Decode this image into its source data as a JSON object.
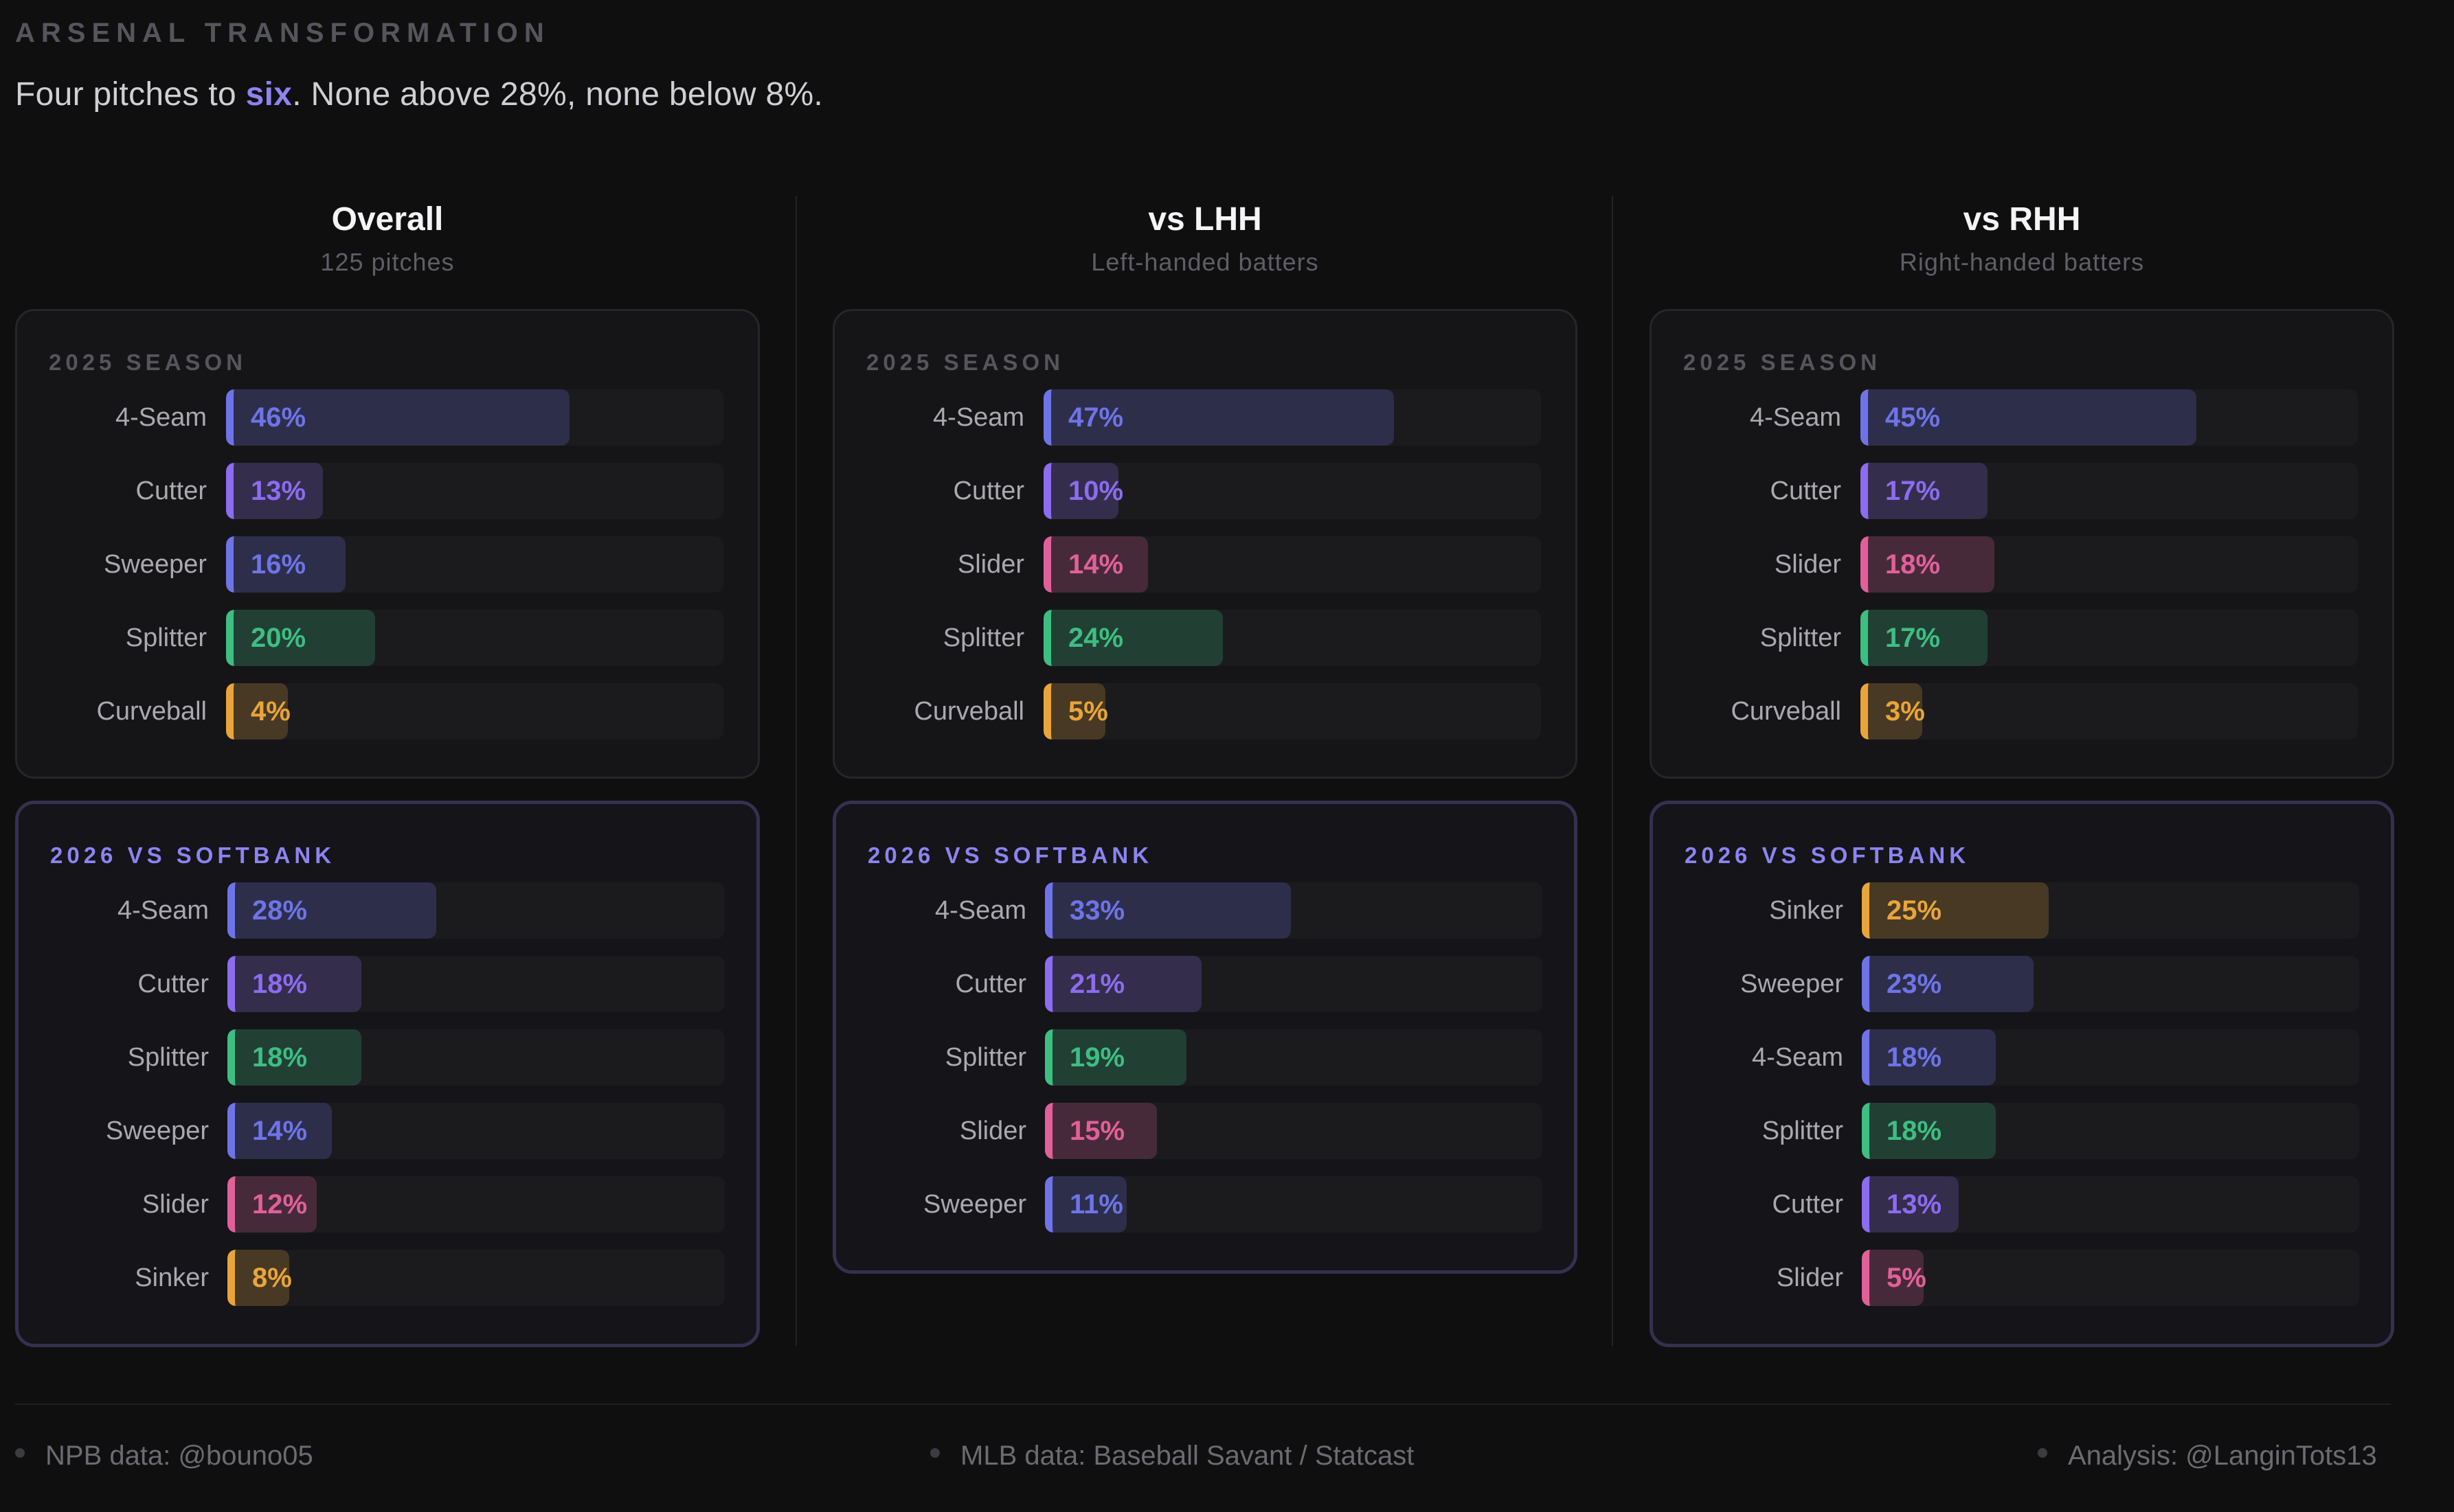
{
  "eyebrow": "ARSENAL TRANSFORMATION",
  "headline": {
    "before": "Four pitches to ",
    "accent": "six",
    "after": ". None above 28%, none below 8%."
  },
  "colors": {
    "fourseam": "#6e74e8",
    "cutter": "#8c6cf0",
    "sweeper": "#6e74e8",
    "splitter": "#3dbf82",
    "curveball": "#e9a53a",
    "slider": "#e2609a",
    "sinker": "#e9a53a",
    "accent": "#8c84f0"
  },
  "chart_data": {
    "type": "bar",
    "orientation": "horizontal",
    "xlim": [
      0,
      100
    ],
    "columns": [
      {
        "title": "Overall",
        "subtitle": "125 pitches",
        "season": {
          "label": "2025 SEASON",
          "rows": [
            {
              "pitch": "4-Seam",
              "value": 46,
              "text": "46%",
              "color": "#6e74e8"
            },
            {
              "pitch": "Cutter",
              "value": 13,
              "text": "13%",
              "color": "#8c6cf0"
            },
            {
              "pitch": "Sweeper",
              "value": 16,
              "text": "16%",
              "color": "#6e74e8"
            },
            {
              "pitch": "Splitter",
              "value": 20,
              "text": "20%",
              "color": "#3dbf82"
            },
            {
              "pitch": "Curveball",
              "value": 4,
              "text": "4%",
              "color": "#e9a53a"
            }
          ]
        },
        "new": {
          "label": "2026 VS SOFTBANK",
          "rows": [
            {
              "pitch": "4-Seam",
              "value": 28,
              "text": "28%",
              "color": "#6e74e8"
            },
            {
              "pitch": "Cutter",
              "value": 18,
              "text": "18%",
              "color": "#8c6cf0"
            },
            {
              "pitch": "Splitter",
              "value": 18,
              "text": "18%",
              "color": "#3dbf82"
            },
            {
              "pitch": "Sweeper",
              "value": 14,
              "text": "14%",
              "color": "#6e74e8"
            },
            {
              "pitch": "Slider",
              "value": 12,
              "text": "12%",
              "color": "#e2609a"
            },
            {
              "pitch": "Sinker",
              "value": 8,
              "text": "8%",
              "color": "#e9a53a"
            }
          ]
        }
      },
      {
        "title": "vs LHH",
        "subtitle": "Left-handed batters",
        "season": {
          "label": "2025 SEASON",
          "rows": [
            {
              "pitch": "4-Seam",
              "value": 47,
              "text": "47%",
              "color": "#6e74e8"
            },
            {
              "pitch": "Cutter",
              "value": 10,
              "text": "10%",
              "color": "#8c6cf0"
            },
            {
              "pitch": "Slider",
              "value": 14,
              "text": "14%",
              "color": "#e2609a"
            },
            {
              "pitch": "Splitter",
              "value": 24,
              "text": "24%",
              "color": "#3dbf82"
            },
            {
              "pitch": "Curveball",
              "value": 5,
              "text": "5%",
              "color": "#e9a53a"
            }
          ]
        },
        "new": {
          "label": "2026 VS SOFTBANK",
          "rows": [
            {
              "pitch": "4-Seam",
              "value": 33,
              "text": "33%",
              "color": "#6e74e8"
            },
            {
              "pitch": "Cutter",
              "value": 21,
              "text": "21%",
              "color": "#8c6cf0"
            },
            {
              "pitch": "Splitter",
              "value": 19,
              "text": "19%",
              "color": "#3dbf82"
            },
            {
              "pitch": "Slider",
              "value": 15,
              "text": "15%",
              "color": "#e2609a"
            },
            {
              "pitch": "Sweeper",
              "value": 11,
              "text": "11%",
              "color": "#6e74e8"
            }
          ]
        }
      },
      {
        "title": "vs RHH",
        "subtitle": "Right-handed batters",
        "season": {
          "label": "2025 SEASON",
          "rows": [
            {
              "pitch": "4-Seam",
              "value": 45,
              "text": "45%",
              "color": "#6e74e8"
            },
            {
              "pitch": "Cutter",
              "value": 17,
              "text": "17%",
              "color": "#8c6cf0"
            },
            {
              "pitch": "Slider",
              "value": 18,
              "text": "18%",
              "color": "#e2609a"
            },
            {
              "pitch": "Splitter",
              "value": 17,
              "text": "17%",
              "color": "#3dbf82"
            },
            {
              "pitch": "Curveball",
              "value": 3,
              "text": "3%",
              "color": "#e9a53a"
            }
          ]
        },
        "new": {
          "label": "2026 VS SOFTBANK",
          "rows": [
            {
              "pitch": "Sinker",
              "value": 25,
              "text": "25%",
              "color": "#e9a53a"
            },
            {
              "pitch": "Sweeper",
              "value": 23,
              "text": "23%",
              "color": "#6e74e8"
            },
            {
              "pitch": "4-Seam",
              "value": 18,
              "text": "18%",
              "color": "#6e74e8"
            },
            {
              "pitch": "Splitter",
              "value": 18,
              "text": "18%",
              "color": "#3dbf82"
            },
            {
              "pitch": "Cutter",
              "value": 13,
              "text": "13%",
              "color": "#8c6cf0"
            },
            {
              "pitch": "Slider",
              "value": 5,
              "text": "5%",
              "color": "#e2609a"
            }
          ]
        }
      }
    ]
  },
  "footer": {
    "left": "NPB data:  @bouno05",
    "center": "MLB data: Baseball Savant / Statcast",
    "right": "Analysis: @LanginTots13"
  }
}
